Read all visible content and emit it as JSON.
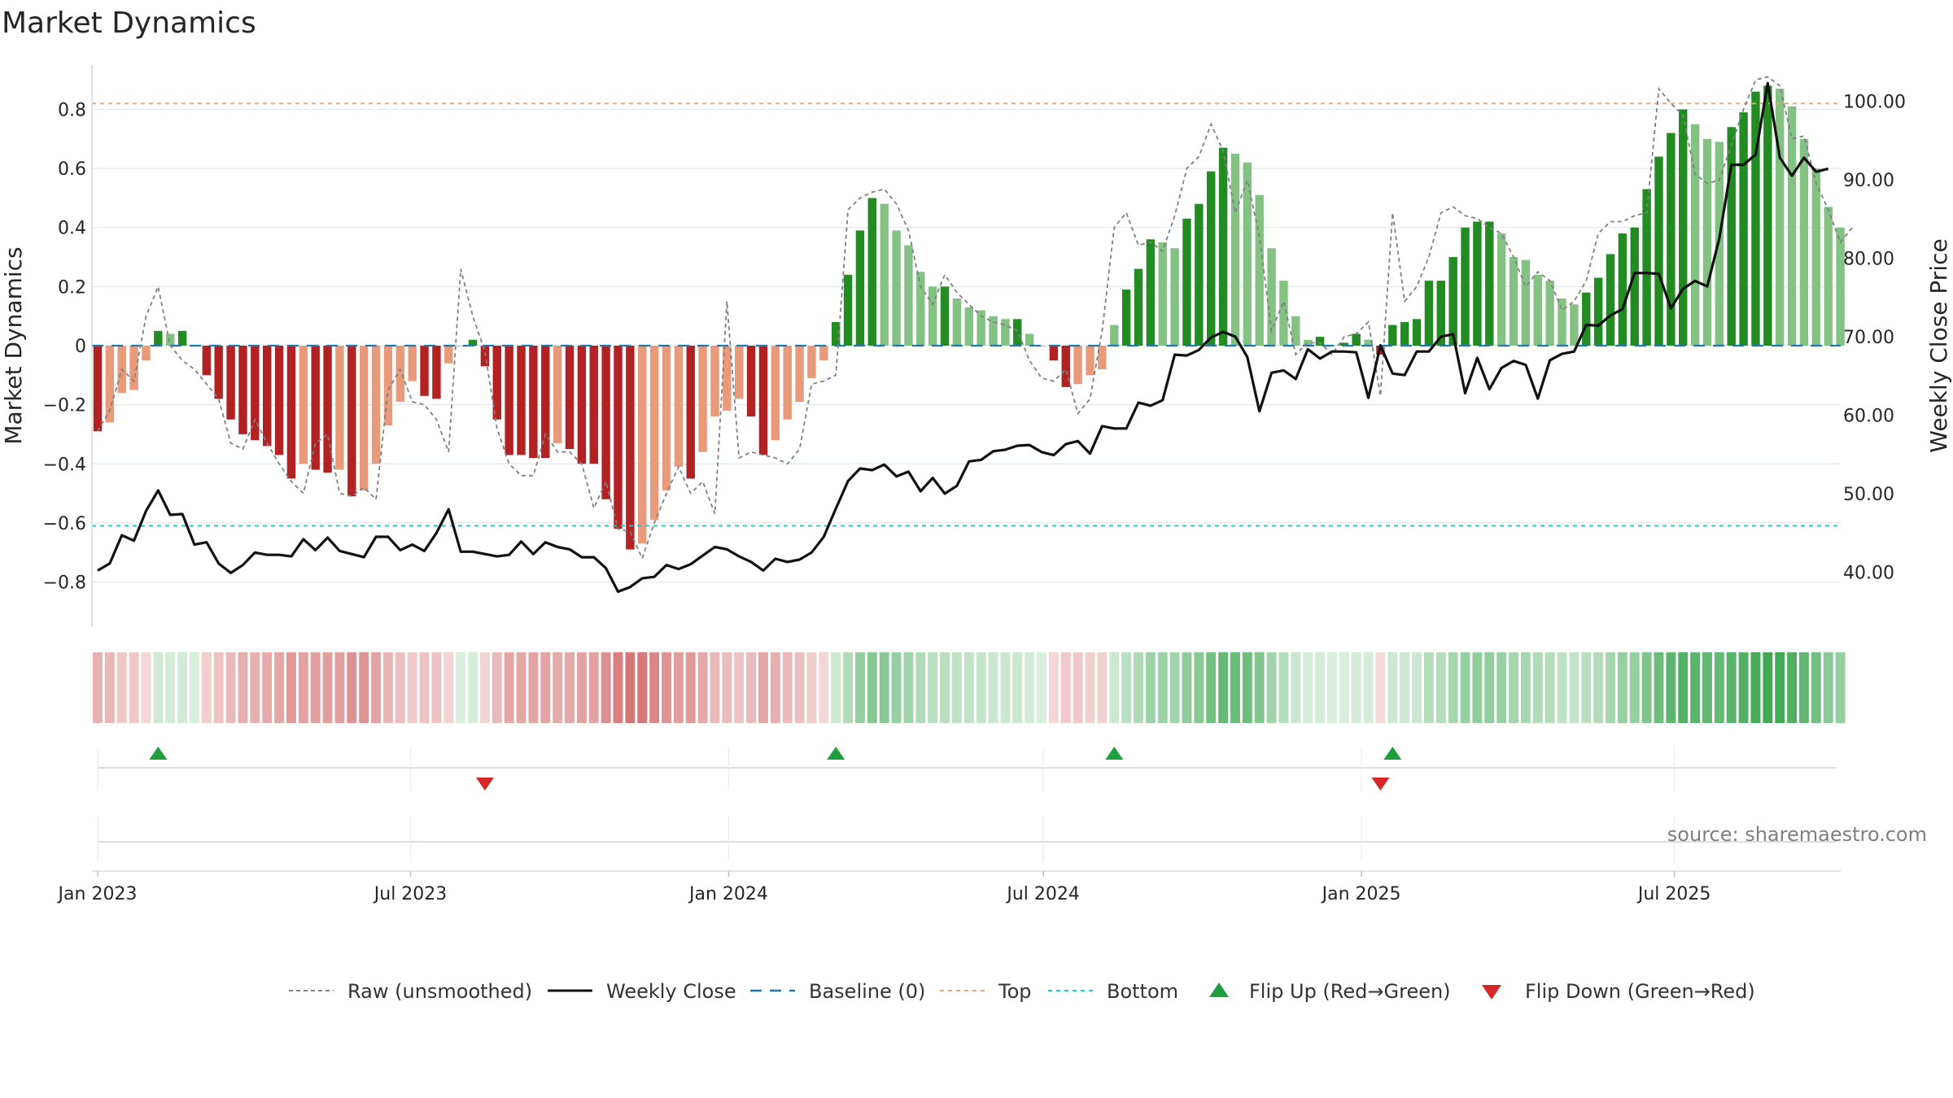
{
  "chart_data": {
    "type": "bar",
    "title": "Market Dynamics",
    "ylabel": "Market Dynamics",
    "ylabel_right": "Weekly Close Price",
    "ylim": [
      -0.95,
      0.95
    ],
    "ylim_right": [
      33.1,
      104.6
    ],
    "yticks": [
      -0.8,
      -0.6,
      -0.4,
      -0.2,
      0,
      0.2,
      0.4,
      0.6,
      0.8
    ],
    "yticks_right": [
      40,
      50,
      60,
      70,
      80,
      90,
      100
    ],
    "x_start": "2023-01-01",
    "week_days": 7,
    "x_ticks": [
      {
        "date": "2023-01-01",
        "label": "Jan 2023"
      },
      {
        "date": "2023-07-01",
        "label": "Jul 2023"
      },
      {
        "date": "2024-01-01",
        "label": "Jan 2024"
      },
      {
        "date": "2024-07-01",
        "label": "Jul 2024"
      },
      {
        "date": "2025-01-01",
        "label": "Jan 2025"
      },
      {
        "date": "2025-07-01",
        "label": "Jul 2025"
      }
    ],
    "top_threshold": 0.82,
    "bottom_threshold": -0.61,
    "bars": [
      -0.29,
      -0.26,
      -0.16,
      -0.15,
      -0.05,
      0.05,
      0.04,
      0.05,
      0,
      -0.1,
      -0.18,
      -0.25,
      -0.3,
      -0.32,
      -0.34,
      -0.37,
      -0.45,
      -0.4,
      -0.42,
      -0.43,
      -0.42,
      -0.51,
      -0.49,
      -0.4,
      -0.27,
      -0.19,
      -0.12,
      -0.17,
      -0.18,
      -0.06,
      0,
      0.02,
      -0.07,
      -0.25,
      -0.37,
      -0.37,
      -0.38,
      -0.38,
      -0.33,
      -0.35,
      -0.4,
      -0.4,
      -0.52,
      -0.62,
      -0.69,
      -0.67,
      -0.59,
      -0.49,
      -0.41,
      -0.45,
      -0.36,
      -0.24,
      -0.22,
      -0.18,
      -0.24,
      -0.37,
      -0.32,
      -0.25,
      -0.19,
      -0.11,
      -0.05,
      0.08,
      0.24,
      0.39,
      0.5,
      0.48,
      0.39,
      0.34,
      0.25,
      0.2,
      0.2,
      0.16,
      0.13,
      0.12,
      0.1,
      0.09,
      0.09,
      0.04,
      0,
      -0.05,
      -0.14,
      -0.13,
      -0.1,
      -0.08,
      0.07,
      0.19,
      0.26,
      0.36,
      0.35,
      0.33,
      0.43,
      0.48,
      0.59,
      0.67,
      0.65,
      0.62,
      0.51,
      0.33,
      0.22,
      0.1,
      0.02,
      0.03,
      0,
      0.01,
      0.04,
      0.02,
      -0.03,
      0.07,
      0.08,
      0.09,
      0.22,
      0.22,
      0.3,
      0.4,
      0.42,
      0.42,
      0.38,
      0.3,
      0.29,
      0.24,
      0.22,
      0.16,
      0.14,
      0.18,
      0.23,
      0.31,
      0.38,
      0.4,
      0.53,
      0.64,
      0.72,
      0.8,
      0.75,
      0.7,
      0.69,
      0.74,
      0.79,
      0.86,
      0.88,
      0.87,
      0.81,
      0.7,
      0.6,
      0.47,
      0.4
    ],
    "raw": [
      -0.29,
      -0.22,
      -0.08,
      -0.12,
      0.1,
      0.2,
      0,
      -0.05,
      -0.08,
      -0.13,
      -0.18,
      -0.33,
      -0.35,
      -0.25,
      -0.33,
      -0.4,
      -0.46,
      -0.5,
      -0.33,
      -0.3,
      -0.5,
      -0.51,
      -0.48,
      -0.52,
      -0.15,
      -0.08,
      -0.19,
      -0.2,
      -0.25,
      -0.36,
      0.26,
      0.1,
      -0.02,
      -0.28,
      -0.4,
      -0.44,
      -0.44,
      -0.3,
      -0.36,
      -0.36,
      -0.4,
      -0.55,
      -0.46,
      -0.62,
      -0.63,
      -0.72,
      -0.6,
      -0.5,
      -0.41,
      -0.5,
      -0.46,
      -0.57,
      0.15,
      -0.38,
      -0.36,
      -0.37,
      -0.38,
      -0.4,
      -0.35,
      -0.13,
      -0.12,
      -0.1,
      0.46,
      0.5,
      0.52,
      0.53,
      0.48,
      0.39,
      0.2,
      0.14,
      0.24,
      0.18,
      0.14,
      0.1,
      0.08,
      0.07,
      0.05,
      -0.05,
      -0.11,
      -0.12,
      -0.08,
      -0.23,
      -0.18,
      0.05,
      0.4,
      0.45,
      0.34,
      0.35,
      0.32,
      0.44,
      0.6,
      0.64,
      0.75,
      0.66,
      0.45,
      0.56,
      0.37,
      0.05,
      0.15,
      -0.03,
      0.01,
      0.01,
      -0.03,
      0.03,
      0.04,
      0.08,
      -0.17,
      0.45,
      0.15,
      0.2,
      0.3,
      0.45,
      0.47,
      0.44,
      0.43,
      0.4,
      0.38,
      0.3,
      0.2,
      0.25,
      0.22,
      0.12,
      0.15,
      0.22,
      0.38,
      0.42,
      0.42,
      0.44,
      0.45,
      0.87,
      0.82,
      0.78,
      0.58,
      0.55,
      0.56,
      0.68,
      0.8,
      0.9,
      0.91,
      0.88,
      0.7,
      0.71,
      0.55,
      0.46,
      0.35,
      0.4
    ],
    "close": [
      40.2,
      41.1,
      44.7,
      44,
      47.8,
      50.4,
      47.3,
      47.4,
      43.5,
      43.8,
      41.1,
      39.9,
      40.9,
      42.5,
      42.2,
      42.2,
      42,
      44.2,
      42.8,
      44.4,
      42.7,
      42.3,
      41.9,
      44.5,
      44.5,
      42.8,
      43.5,
      42.7,
      45,
      48,
      42.6,
      42.6,
      42.3,
      42,
      42.2,
      43.9,
      42.3,
      43.8,
      43.2,
      42.9,
      41.9,
      41.9,
      40.5,
      37.5,
      38.1,
      39.2,
      39.4,
      40.9,
      40.4,
      41,
      42.1,
      43.2,
      42.9,
      42,
      41.3,
      40.2,
      41.7,
      41.3,
      41.6,
      42.5,
      44.5,
      48.1,
      51.6,
      53.2,
      53,
      53.7,
      52.2,
      52.8,
      50.3,
      52,
      50,
      51,
      54.1,
      54.3,
      55.4,
      55.6,
      56.1,
      56.2,
      55.3,
      54.9,
      56.3,
      56.7,
      55.1,
      58.6,
      58.3,
      58.3,
      61.6,
      61.2,
      61.9,
      67.7,
      67.6,
      68.3,
      69.9,
      70.6,
      70,
      67.4,
      60.5,
      65.4,
      65.7,
      64.6,
      68.4,
      67.2,
      68.1,
      68.1,
      68,
      62.2,
      68.9,
      65.3,
      65.1,
      68.1,
      68.1,
      70,
      70.3,
      62.8,
      67.3,
      63.3,
      66,
      66.9,
      66.4,
      62.1,
      67,
      67.8,
      68.1,
      71.5,
      71.4,
      72.7,
      73.5,
      78.1,
      78.1,
      78,
      73.6,
      76.1,
      77.1,
      76.4,
      82.5,
      91.9,
      91.9,
      93.2,
      102.3,
      92.8,
      90.5,
      92.8,
      91,
      91.4
    ]
  },
  "legend": {
    "raw": "Raw (unsmoothed)",
    "close": "Weekly Close",
    "baseline": "Baseline (0)",
    "top": "Top",
    "bottom": "Bottom",
    "flip_up": "Flip Up (Red→Green)",
    "flip_down": "Flip Down (Green→Red)"
  },
  "source": "source: sharemaestro.com",
  "colors": {
    "pos_strong": "#228b22",
    "pos_weak": "#83c283",
    "neg_strong": "#b22222",
    "neg_weak": "#e89a7a",
    "close_line": "#111111",
    "raw_line": "#808080",
    "baseline": "#1f77b4",
    "top_line": "#f2a56b",
    "bottom_line": "#20c7d0",
    "flip_up": "#1f9e3e",
    "flip_down": "#d62728"
  }
}
